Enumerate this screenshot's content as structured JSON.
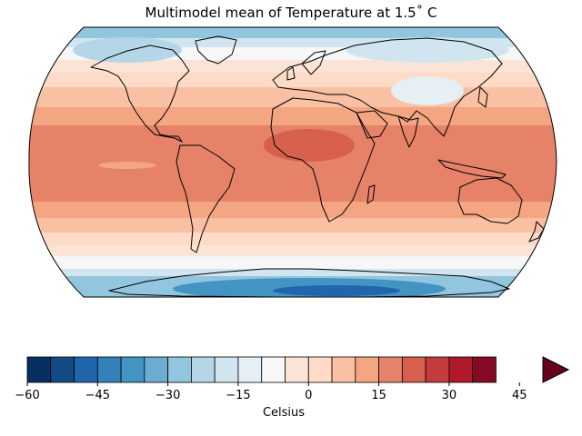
{
  "title": "Multimodel mean of Temperature at 1.5˚ C",
  "colorbar": {
    "label": "Celsius",
    "ticks": [
      "−60",
      "−45",
      "−30",
      "−15",
      "0",
      "15",
      "30",
      "45"
    ],
    "tick_values": [
      -60,
      -45,
      -30,
      -15,
      0,
      15,
      30,
      45
    ],
    "range": [
      -60,
      50
    ],
    "step": 5,
    "extend": "max",
    "colors": [
      "#053061",
      "#134b87",
      "#2166ac",
      "#3480b9",
      "#4393c3",
      "#6dacd1",
      "#92c5de",
      "#b4d6e7",
      "#d1e5f0",
      "#e5eff4",
      "#f7f7f7",
      "#fbe4d6",
      "#fddbc7",
      "#f9c0a4",
      "#f4a582",
      "#e58268",
      "#d6604d",
      "#c43b3c",
      "#b2182b",
      "#870a24"
    ],
    "extend_color": "#67001f"
  },
  "map": {
    "projection": "Robinson",
    "coastlines": true,
    "pattern": "zonal bands: warmest 25-30 °C in tropics, cooling poleward to below -45 °C over Antarctica"
  }
}
